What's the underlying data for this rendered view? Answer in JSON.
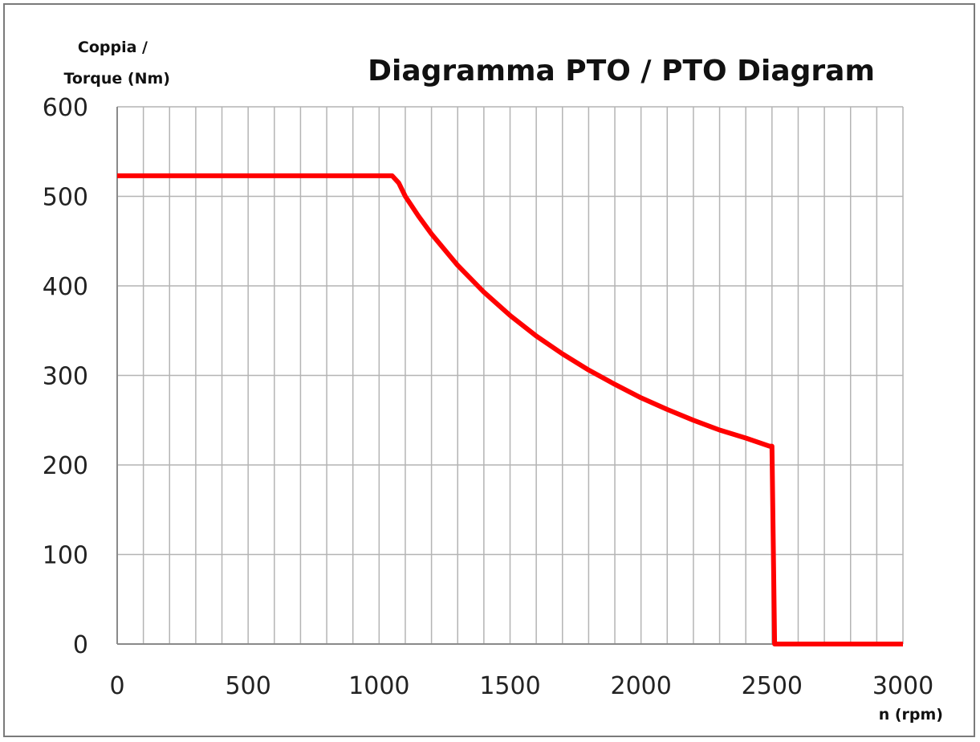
{
  "chart_data": {
    "type": "line",
    "title": "Diagramma PTO / PTO Diagram",
    "ylabel_lines": [
      "Coppia /",
      "Torque (Nm)"
    ],
    "xlabel": "n (rpm)",
    "xlim": [
      0,
      3000
    ],
    "ylim": [
      0,
      600
    ],
    "x_ticks": [
      0,
      500,
      1000,
      1500,
      2000,
      2500,
      3000
    ],
    "y_ticks": [
      0,
      100,
      200,
      300,
      400,
      500,
      600
    ],
    "x_grid_step": 100,
    "y_grid_step": 100,
    "grid": true,
    "series": [
      {
        "color": "#ff0000",
        "points": [
          [
            0,
            523
          ],
          [
            1050,
            523
          ],
          [
            1075,
            515
          ],
          [
            1100,
            500
          ],
          [
            1150,
            478
          ],
          [
            1200,
            458
          ],
          [
            1300,
            423
          ],
          [
            1400,
            393
          ],
          [
            1500,
            367
          ],
          [
            1600,
            344
          ],
          [
            1700,
            324
          ],
          [
            1800,
            306
          ],
          [
            1900,
            290
          ],
          [
            2000,
            275
          ],
          [
            2100,
            262
          ],
          [
            2200,
            250
          ],
          [
            2300,
            239
          ],
          [
            2400,
            230
          ],
          [
            2490,
            221
          ],
          [
            2500,
            221
          ],
          [
            2510,
            0
          ],
          [
            3000,
            0
          ]
        ]
      }
    ]
  }
}
